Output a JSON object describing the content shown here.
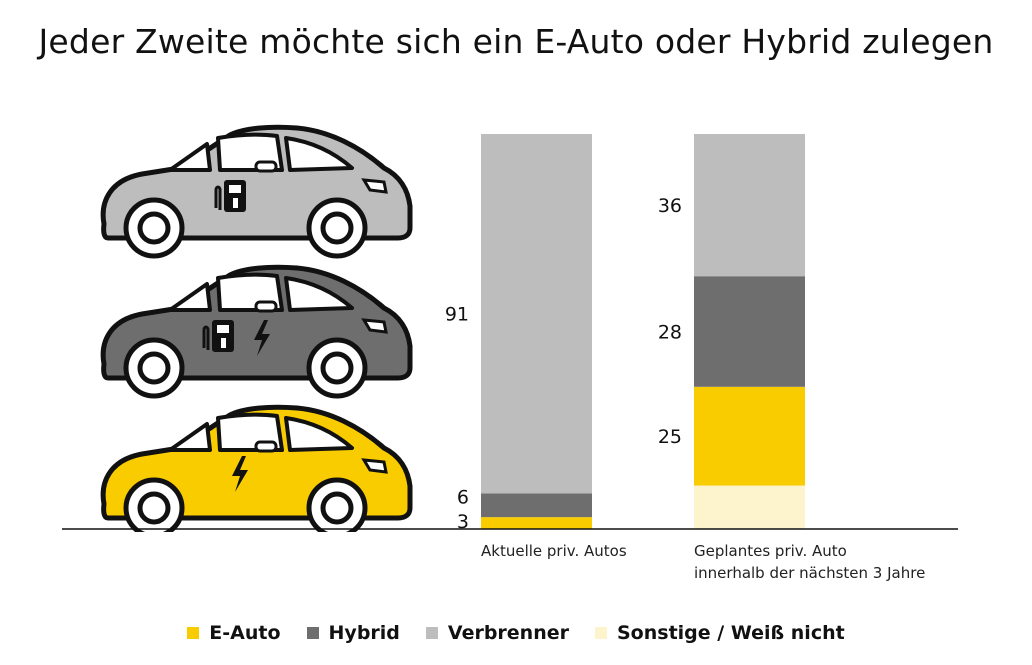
{
  "title": "Jeder Zweite möchte sich ein E-Auto oder Hybrid zulegen",
  "colors": {
    "e_auto": "#f9cc00",
    "hybrid": "#6e6e6e",
    "verbrenner": "#bdbdbd",
    "sonstige": "#fdf3cc"
  },
  "icons": [
    "combustion-car-icon",
    "hybrid-car-icon",
    "electric-car-icon"
  ],
  "chart_data": {
    "type": "bar",
    "stacked": true,
    "categories": [
      "Aktuelle priv. Autos",
      "Geplantes priv. Auto innerhalb der nächsten 3 Jahre"
    ],
    "category_lines": [
      [
        "Aktuelle priv. Autos"
      ],
      [
        "Geplantes priv. Auto",
        "innerhalb der nächsten 3 Jahre"
      ]
    ],
    "series": [
      {
        "name": "E-Auto",
        "values": [
          3,
          25
        ],
        "labels": [
          "3",
          "25"
        ],
        "color": "#f9cc00"
      },
      {
        "name": "Hybrid",
        "values": [
          6,
          28
        ],
        "labels": [
          "6",
          "28"
        ],
        "color": "#6e6e6e"
      },
      {
        "name": "Verbrenner",
        "values": [
          91,
          36
        ],
        "labels": [
          "91",
          "36"
        ],
        "color": "#bdbdbd"
      },
      {
        "name": "Sonstige / Weiß nicht",
        "values": [
          0,
          11
        ],
        "labels": [
          "",
          ""
        ],
        "color": "#fdf3cc"
      }
    ],
    "stack_order": [
      "Sonstige / Weiß nicht",
      "E-Auto",
      "Hybrid",
      "Verbrenner"
    ],
    "ylim": [
      0,
      100
    ],
    "grid": false,
    "legend": "bottom"
  }
}
